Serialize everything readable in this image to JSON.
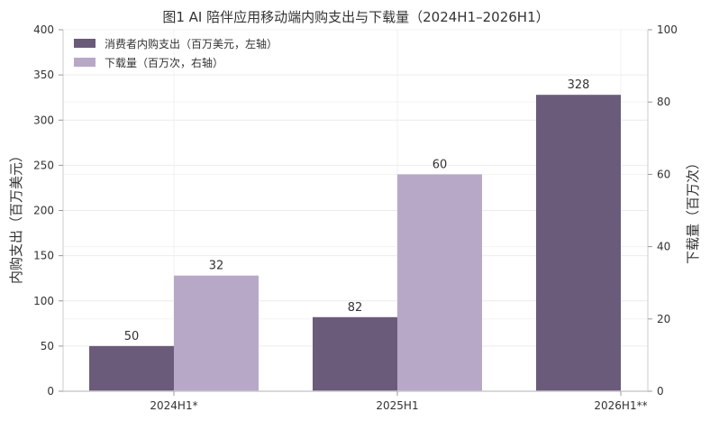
{
  "chart_data": {
    "type": "bar",
    "title": "图1  AI 陪伴应用移动端内购支出与下载量（2024H1–2026H1）",
    "categories": [
      "2024H1*",
      "2025H1",
      "2026H1**"
    ],
    "series": [
      {
        "name": "消费者内购支出（百万美元，左轴）",
        "axis": "left",
        "color": "#6b5b7b",
        "values": [
          50,
          82,
          328
        ]
      },
      {
        "name": "下载量（百万次，右轴）",
        "axis": "right",
        "color": "#b8a8c8",
        "values": [
          32,
          60,
          null
        ]
      }
    ],
    "ylabel": "内购支出（百万美元）",
    "y2label": "下载量（百万次）",
    "ylim": [
      0,
      400
    ],
    "y2lim": [
      0,
      100
    ],
    "yticks": [
      0,
      50,
      100,
      150,
      200,
      250,
      300,
      350,
      400
    ],
    "y2ticks": [
      0,
      20,
      40,
      60,
      80,
      100
    ],
    "grid": true,
    "legend_position": "top-left"
  }
}
